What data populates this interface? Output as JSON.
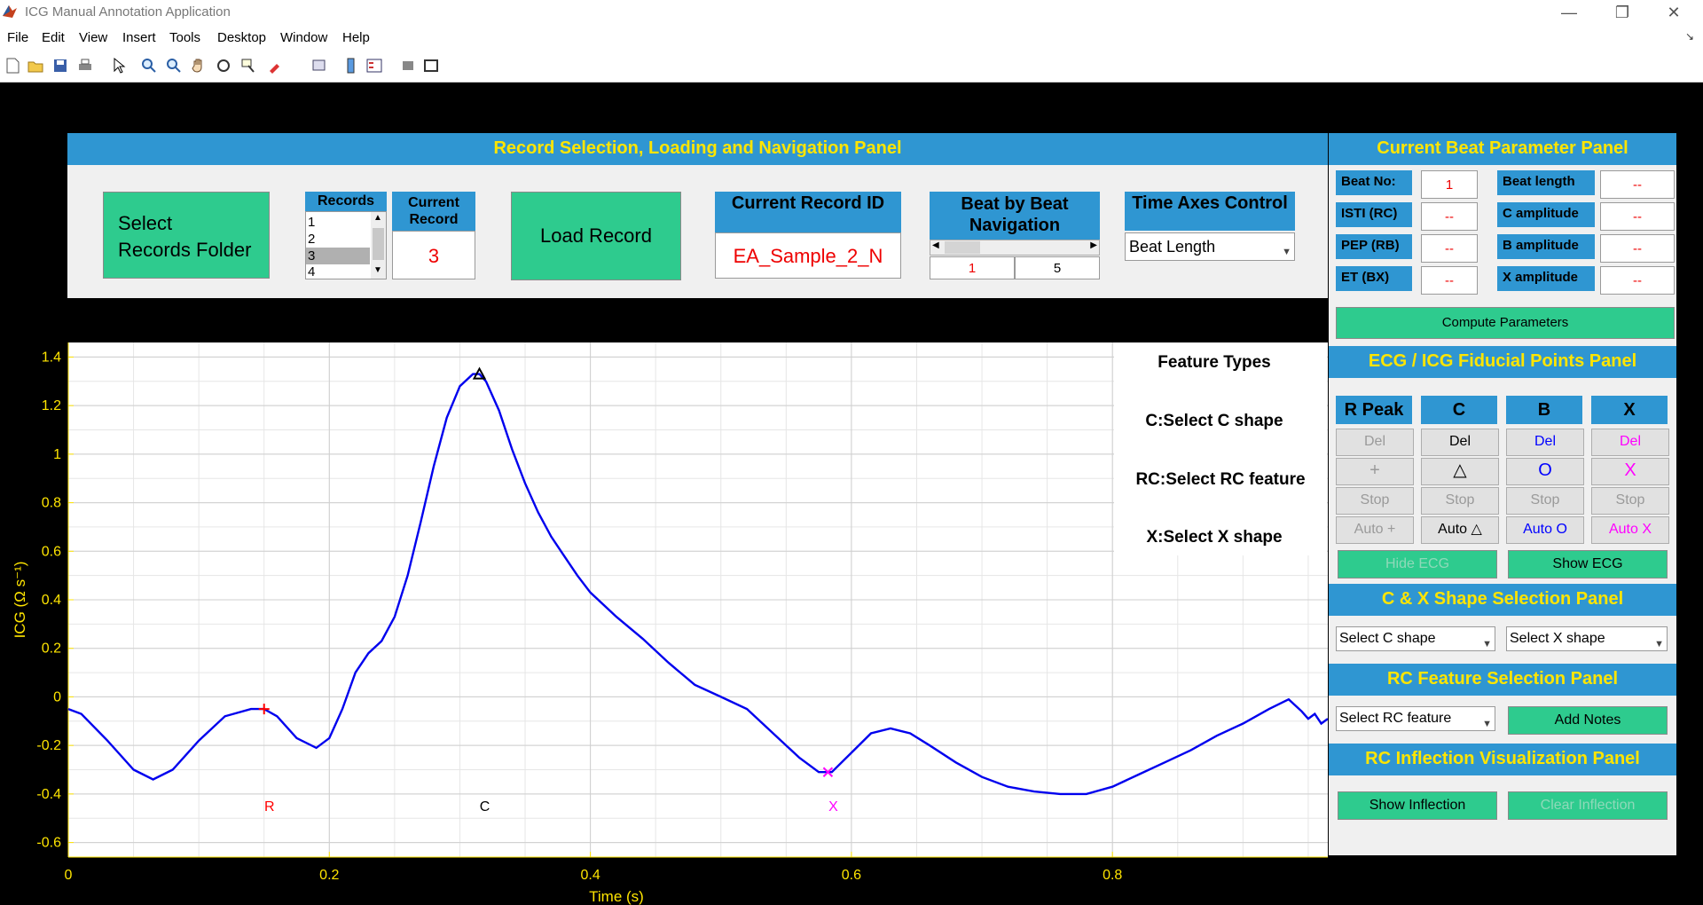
{
  "window": {
    "title": "ICG Manual Annotation Application"
  },
  "menu": [
    "File",
    "Edit",
    "View",
    "Insert",
    "Tools",
    "Desktop",
    "Window",
    "Help"
  ],
  "record_panel": {
    "title": "Record Selection, Loading and Navigation Panel",
    "select_folder_label": "Select\nRecords Folder",
    "records_header": "Records",
    "records": [
      "1",
      "2",
      "3",
      "4"
    ],
    "selected_record": "3",
    "current_record_header": "Current Record",
    "current_record_value": "3",
    "load_label": "Load Record",
    "record_id_header": "Current Record ID",
    "record_id_value": "EA_Sample_2_N",
    "beat_nav_header": "Beat by Beat Navigation",
    "beat_current": "1",
    "beat_total": "5",
    "time_axes_header": "Time Axes Control",
    "time_axes_value": "Beat Length"
  },
  "beat_panel": {
    "title": "Current Beat Parameter Panel",
    "rows": [
      {
        "l1": "Beat No:",
        "v1": "1",
        "l2": "Beat length",
        "v2": "--"
      },
      {
        "l1": "ISTI (RC)",
        "v1": "--",
        "l2": "C amplitude",
        "v2": "--"
      },
      {
        "l1": "PEP (RB)",
        "v1": "--",
        "l2": "B amplitude",
        "v2": "--"
      },
      {
        "l1": "ET (BX)",
        "v1": "--",
        "l2": "X amplitude",
        "v2": "--"
      }
    ],
    "compute_label": "Compute Parameters"
  },
  "fiducial_panel": {
    "title": "ECG / ICG Fiducial Points Panel",
    "columns": [
      {
        "header": "R Peak",
        "del": "Del",
        "mark": "+",
        "stop": "Stop",
        "auto": "Auto +",
        "color": "#9a9a9a"
      },
      {
        "header": "C",
        "del": "Del",
        "mark": "△",
        "stop": "Stop",
        "auto": "Auto △",
        "color": "#000000"
      },
      {
        "header": "B",
        "del": "Del",
        "mark": "O",
        "stop": "Stop",
        "auto": "Auto O",
        "color": "#0000ff"
      },
      {
        "header": "X",
        "del": "Del",
        "mark": "X",
        "stop": "Stop",
        "auto": "Auto X",
        "color": "#ff00ff"
      }
    ],
    "hide_ecg_label": "Hide ECG",
    "show_ecg_label": "Show ECG"
  },
  "shape_panel": {
    "title": "C & X Shape Selection Panel",
    "c_select": "Select C shape",
    "x_select": "Select X shape"
  },
  "rc_panel": {
    "title": "RC Feature Selection Panel",
    "select": "Select RC feature",
    "add_notes": "Add Notes"
  },
  "inflection_panel": {
    "title": "RC Inflection Visualization Panel",
    "show": "Show Inflection",
    "clear": "Clear Inflection"
  },
  "feature_types": {
    "title": "Feature Types",
    "items": [
      "C:Select C shape",
      "RC:Select RC feature",
      "X:Select X shape"
    ]
  },
  "chart_data": {
    "type": "line",
    "xlabel": "Time (s)",
    "ylabel": "ICG (Ω s⁻¹)",
    "xlim": [
      0,
      0.965
    ],
    "ylim": [
      -0.66,
      1.46
    ],
    "xticks": [
      "0",
      "0.2",
      "0.4",
      "0.6",
      "0.8"
    ],
    "xtick_values": [
      0,
      0.2,
      0.4,
      0.6,
      0.8
    ],
    "yticks": [
      "1.4",
      "1.2",
      "1",
      "0.8",
      "0.6",
      "0.4",
      "0.2",
      "0",
      "-0.2",
      "-0.4",
      "-0.6"
    ],
    "ytick_values": [
      1.4,
      1.2,
      1,
      0.8,
      0.6,
      0.4,
      0.2,
      0,
      -0.2,
      -0.4,
      -0.6
    ],
    "grid": true,
    "series": [
      {
        "color": "#0000ee",
        "x": [
          0,
          0.01,
          0.03,
          0.05,
          0.065,
          0.08,
          0.1,
          0.12,
          0.14,
          0.15,
          0.16,
          0.175,
          0.19,
          0.2,
          0.21,
          0.22,
          0.23,
          0.24,
          0.25,
          0.26,
          0.27,
          0.28,
          0.29,
          0.3,
          0.31,
          0.315,
          0.32,
          0.33,
          0.34,
          0.35,
          0.36,
          0.37,
          0.38,
          0.39,
          0.4,
          0.42,
          0.44,
          0.46,
          0.48,
          0.5,
          0.52,
          0.54,
          0.56,
          0.575,
          0.585,
          0.6,
          0.615,
          0.63,
          0.645,
          0.66,
          0.68,
          0.7,
          0.72,
          0.74,
          0.76,
          0.78,
          0.8,
          0.82,
          0.84,
          0.86,
          0.88,
          0.9,
          0.92,
          0.935,
          0.945,
          0.95,
          0.955,
          0.96,
          0.965
        ],
        "y": [
          -0.05,
          -0.07,
          -0.18,
          -0.3,
          -0.34,
          -0.3,
          -0.18,
          -0.08,
          -0.05,
          -0.05,
          -0.08,
          -0.17,
          -0.21,
          -0.17,
          -0.05,
          0.1,
          0.18,
          0.23,
          0.33,
          0.5,
          0.72,
          0.95,
          1.15,
          1.28,
          1.33,
          1.33,
          1.3,
          1.18,
          1.02,
          0.88,
          0.76,
          0.66,
          0.58,
          0.5,
          0.43,
          0.33,
          0.24,
          0.14,
          0.05,
          0.0,
          -0.05,
          -0.15,
          -0.25,
          -0.31,
          -0.31,
          -0.23,
          -0.15,
          -0.13,
          -0.15,
          -0.2,
          -0.27,
          -0.33,
          -0.37,
          -0.39,
          -0.4,
          -0.4,
          -0.37,
          -0.32,
          -0.27,
          -0.22,
          -0.16,
          -0.11,
          -0.05,
          -0.01,
          -0.06,
          -0.09,
          -0.07,
          -0.11,
          -0.09
        ]
      }
    ],
    "markers": [
      {
        "label": "R",
        "x": 0.15,
        "y": -0.05,
        "symbol": "+",
        "color": "#ff0000"
      },
      {
        "label": "C",
        "x": 0.315,
        "y": 1.33,
        "symbol": "△",
        "color": "#000000"
      },
      {
        "label": "X",
        "x": 0.582,
        "y": -0.31,
        "symbol": "x",
        "color": "#ff00ff"
      }
    ],
    "marker_label_y": -0.47
  }
}
